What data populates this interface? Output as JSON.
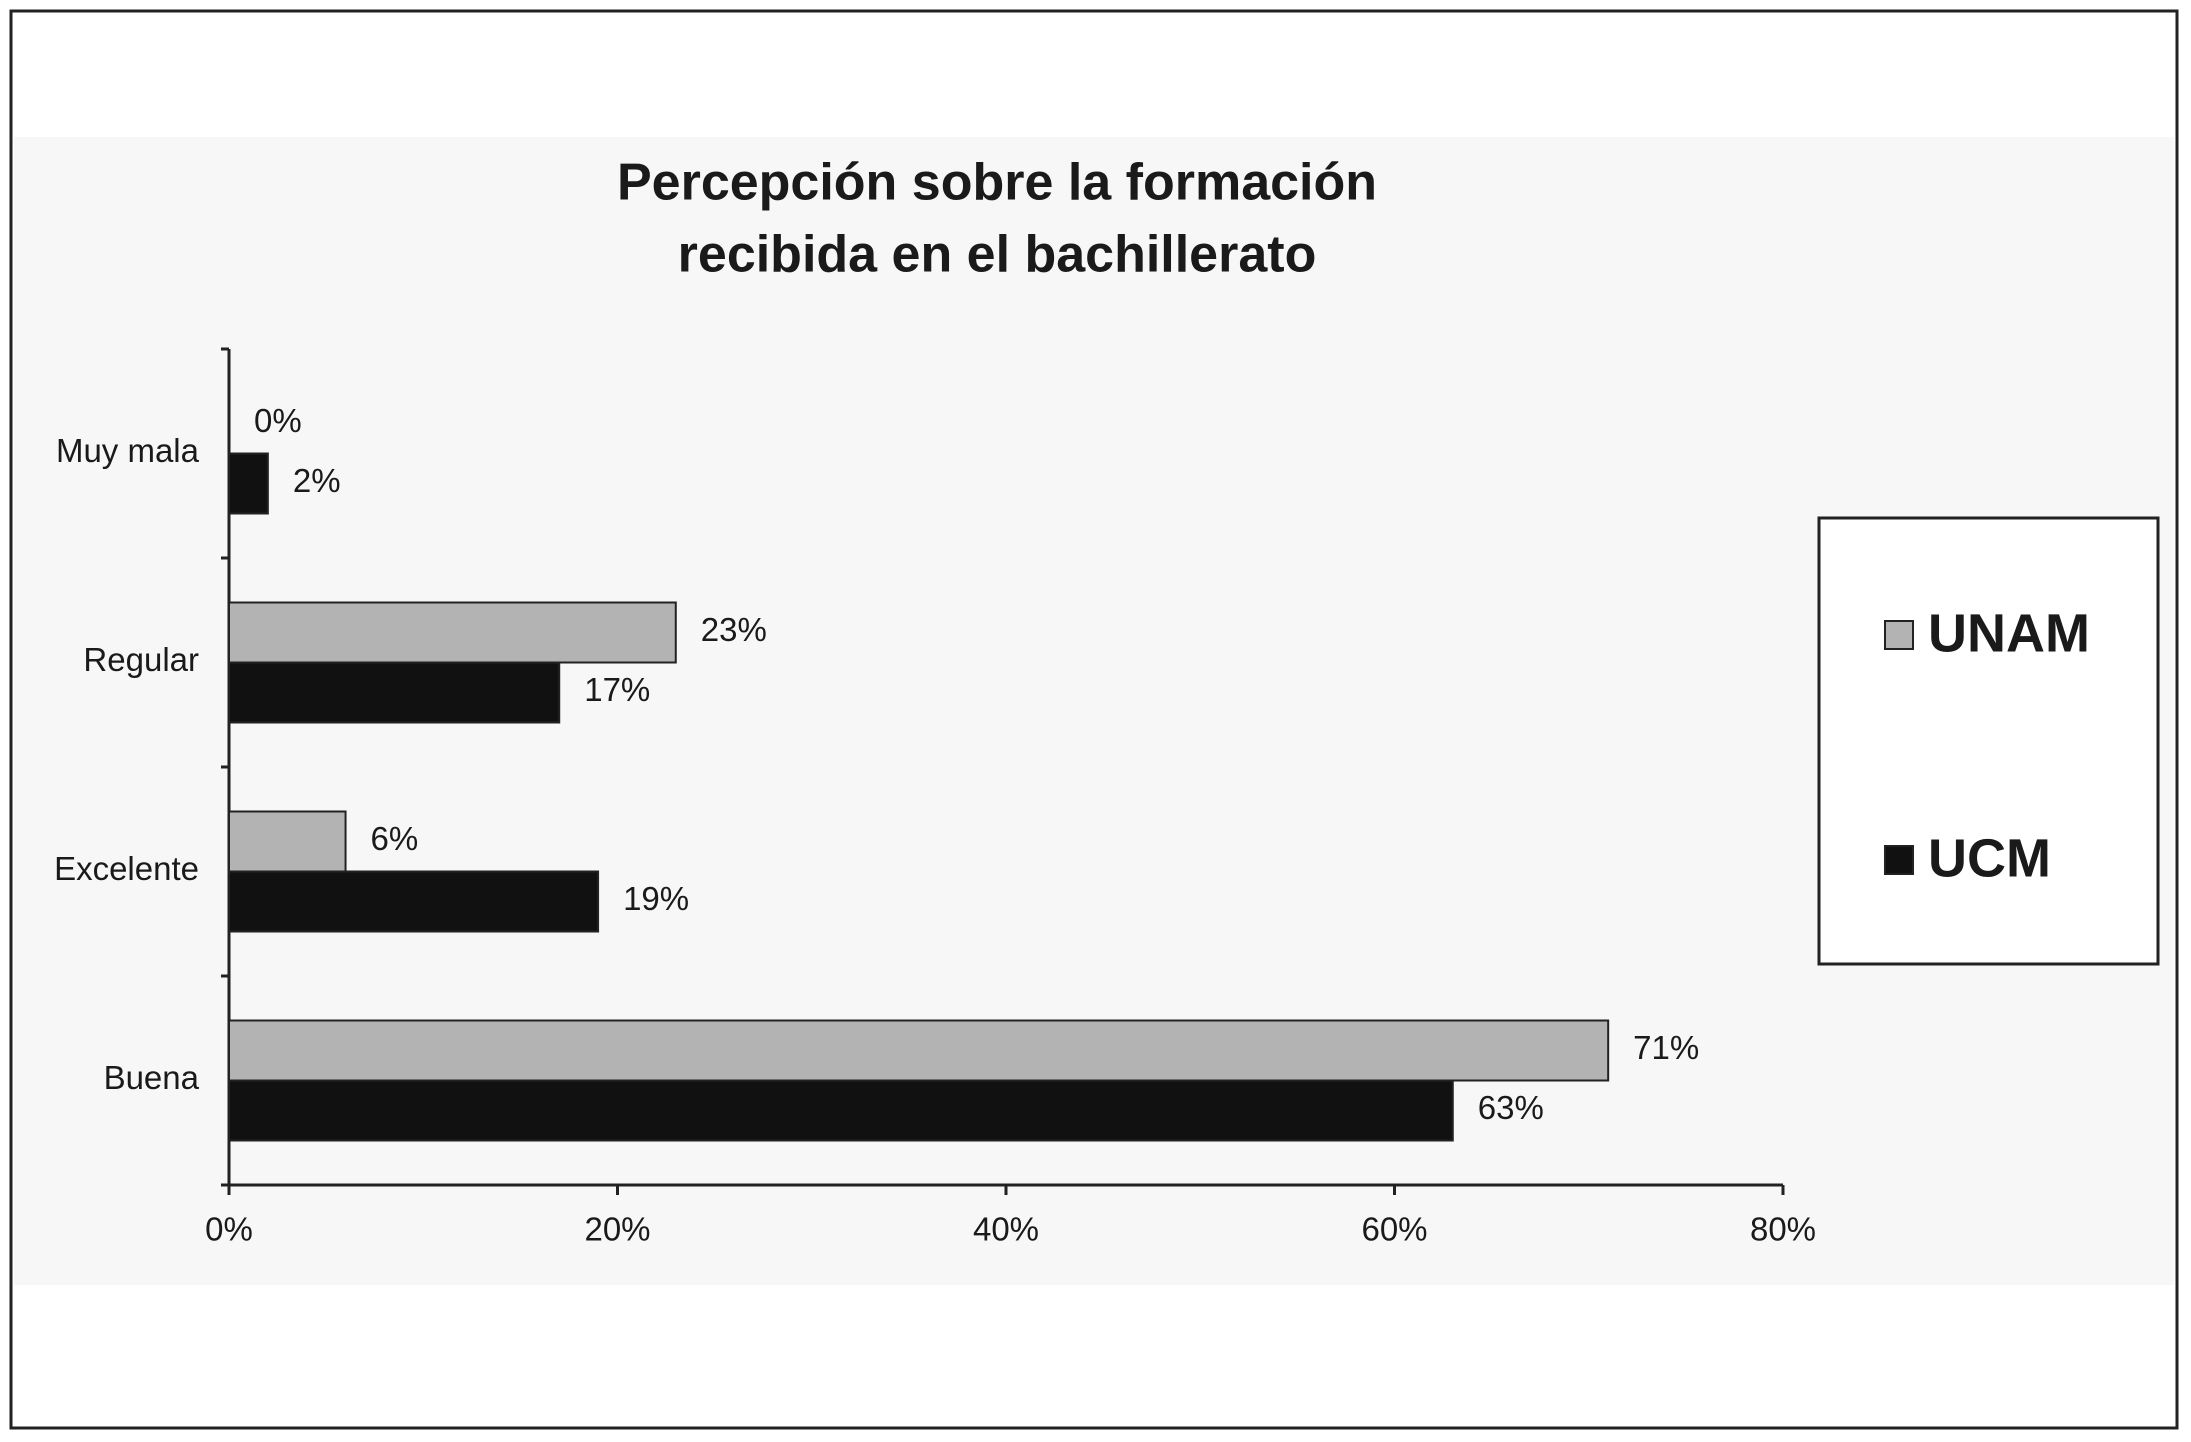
{
  "chart_data": {
    "type": "bar",
    "orientation": "horizontal",
    "title": [
      "Percepción sobre la formación",
      "recibida en el bachillerato"
    ],
    "categories": [
      "Muy mala",
      "Regular",
      "Excelente",
      "Buena"
    ],
    "series": [
      {
        "name": "UNAM",
        "color": "#b3b3b3",
        "values": [
          0,
          23,
          6,
          71
        ],
        "value_labels": [
          "0%",
          "23%",
          "6%",
          "71%"
        ]
      },
      {
        "name": "UCM",
        "color": "#111111",
        "values": [
          2,
          17,
          19,
          63
        ],
        "value_labels": [
          "2%",
          "17%",
          "19%",
          "63%"
        ]
      }
    ],
    "xlim": [
      0,
      80
    ],
    "xticks": [
      {
        "value": 0,
        "label": "0%"
      },
      {
        "value": 20,
        "label": "20%"
      },
      {
        "value": 40,
        "label": "40%"
      },
      {
        "value": 60,
        "label": "60%"
      },
      {
        "value": 80,
        "label": "80%"
      }
    ],
    "legend": "right"
  }
}
